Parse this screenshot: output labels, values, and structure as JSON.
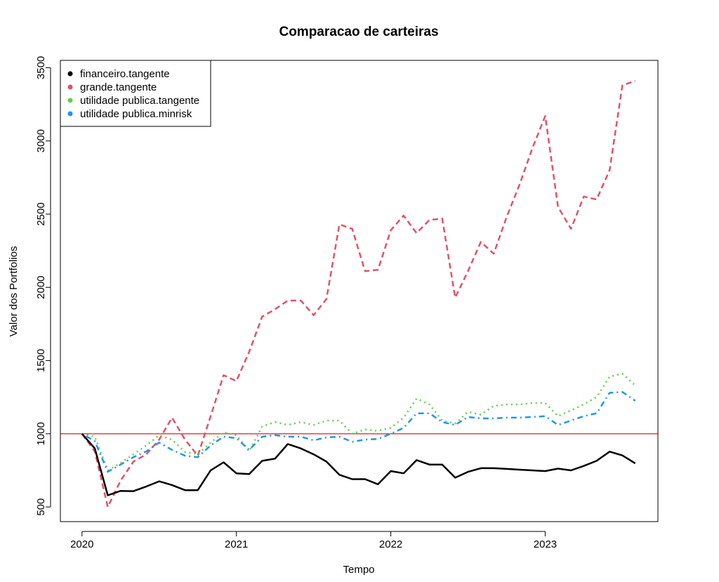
{
  "chart_data": {
    "type": "line",
    "title": "Comparacao de carteiras",
    "xlabel": "Tempo",
    "ylabel": "Valor dos Portfolios",
    "xlim": [
      2019.86,
      2023.73
    ],
    "ylim": [
      400,
      3550
    ],
    "x_ticks": [
      2020,
      2021,
      2022,
      2023
    ],
    "x_tick_labels": [
      "2020",
      "2021",
      "2022",
      "2023"
    ],
    "y_ticks": [
      500,
      1000,
      1500,
      2000,
      2500,
      3000,
      3500
    ],
    "y_tick_labels": [
      "500",
      "1000",
      "1500",
      "2000",
      "2500",
      "3000",
      "3500"
    ],
    "grid": false,
    "legend_position": "top-left",
    "reference_line": {
      "y": 1000,
      "color": "#e31a1c"
    },
    "x": [
      2020.0,
      2020.083,
      2020.167,
      2020.25,
      2020.333,
      2020.417,
      2020.5,
      2020.583,
      2020.667,
      2020.75,
      2020.833,
      2020.917,
      2021.0,
      2021.083,
      2021.167,
      2021.25,
      2021.333,
      2021.417,
      2021.5,
      2021.583,
      2021.667,
      2021.75,
      2021.833,
      2021.917,
      2022.0,
      2022.083,
      2022.167,
      2022.25,
      2022.333,
      2022.417,
      2022.5,
      2022.583,
      2022.667,
      2022.75,
      2022.833,
      2022.917,
      2023.0,
      2023.083,
      2023.167,
      2023.25,
      2023.333,
      2023.417,
      2023.5,
      2023.583
    ],
    "series": [
      {
        "name": "financeiro.tangente",
        "color": "#000000",
        "dash": "solid",
        "values": [
          1000,
          900,
          580,
          610,
          608,
          640,
          675,
          650,
          615,
          615,
          750,
          805,
          730,
          725,
          815,
          830,
          930,
          900,
          860,
          810,
          720,
          690,
          690,
          655,
          745,
          730,
          820,
          790,
          790,
          700,
          740,
          765,
          765,
          760,
          755,
          750,
          745,
          762,
          750,
          780,
          815,
          878,
          852,
          798
        ]
      },
      {
        "name": "grande.tangente",
        "color": "#df536b",
        "dash": "dashed",
        "values": [
          1000,
          880,
          500,
          680,
          810,
          860,
          960,
          1110,
          960,
          850,
          1120,
          1400,
          1360,
          1560,
          1800,
          1850,
          1910,
          1910,
          1810,
          1920,
          2430,
          2400,
          2110,
          2120,
          2390,
          2490,
          2370,
          2460,
          2470,
          1930,
          2110,
          2310,
          2230,
          2480,
          2700,
          2950,
          3170,
          2550,
          2400,
          2620,
          2600,
          2800,
          3380,
          3410
        ]
      },
      {
        "name": "utilidade publica.tangente",
        "color": "#61d04f",
        "dash": "dotted",
        "values": [
          1000,
          980,
          750,
          800,
          860,
          920,
          990,
          960,
          875,
          860,
          940,
          1010,
          990,
          880,
          1050,
          1080,
          1060,
          1080,
          1060,
          1090,
          1090,
          1000,
          1030,
          1020,
          1040,
          1110,
          1240,
          1200,
          1090,
          1070,
          1150,
          1130,
          1190,
          1200,
          1200,
          1210,
          1210,
          1120,
          1160,
          1200,
          1250,
          1390,
          1410,
          1330
        ]
      },
      {
        "name": "utilidade publica.minrisk",
        "color": "#2297e6",
        "dash": "dotdash",
        "values": [
          1000,
          950,
          740,
          790,
          840,
          880,
          940,
          890,
          850,
          840,
          920,
          980,
          970,
          890,
          980,
          990,
          980,
          980,
          955,
          975,
          980,
          945,
          960,
          965,
          1000,
          1040,
          1140,
          1140,
          1080,
          1060,
          1115,
          1105,
          1105,
          1110,
          1110,
          1115,
          1120,
          1060,
          1090,
          1120,
          1140,
          1280,
          1285,
          1225
        ]
      }
    ]
  }
}
